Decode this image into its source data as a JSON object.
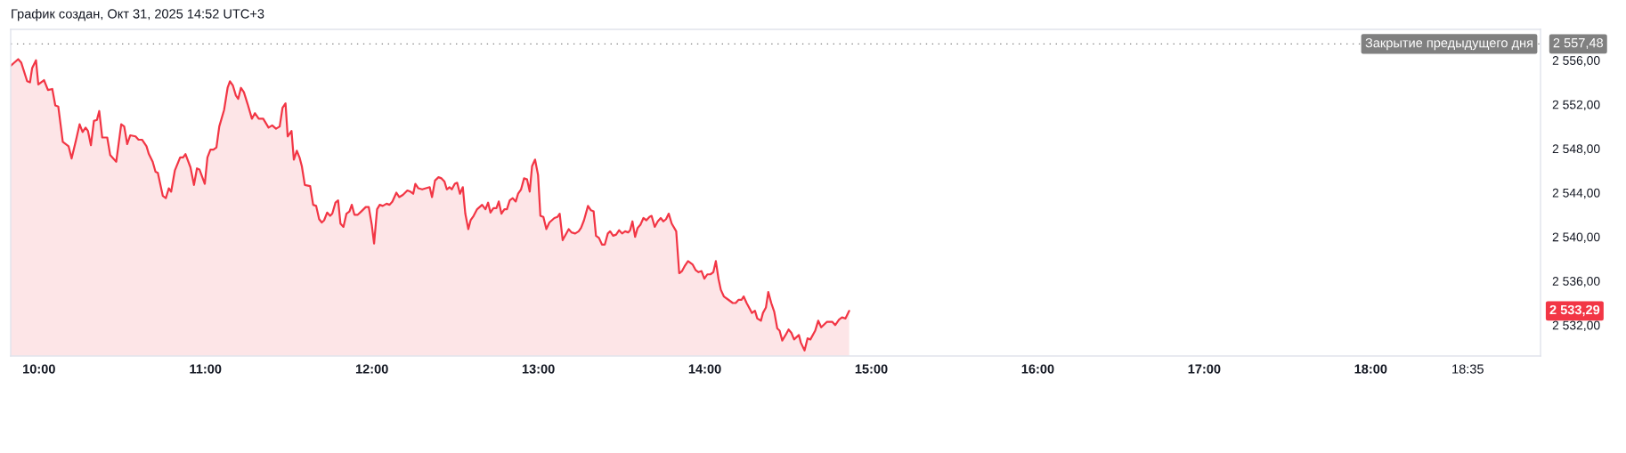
{
  "chart_data": {
    "type": "area",
    "title": "График создан, Окт 31, 2025 14:52 UTC+3",
    "x": [
      9.83,
      9.875,
      9.893,
      9.929,
      9.946,
      9.959,
      9.982,
      9.996,
      10.03,
      10.054,
      10.08,
      10.098,
      10.116,
      10.143,
      10.178,
      10.196,
      10.223,
      10.244,
      10.262,
      10.28,
      10.294,
      10.312,
      10.33,
      10.348,
      10.362,
      10.38,
      10.41,
      10.428,
      10.464,
      10.494,
      10.512,
      10.53,
      10.548,
      10.58,
      10.598,
      10.619,
      10.646,
      10.66,
      10.683,
      10.7,
      10.714,
      10.744,
      10.762,
      10.78,
      10.794,
      10.816,
      10.848,
      10.866,
      10.88,
      10.91,
      10.931,
      10.949,
      10.964,
      10.996,
      11.012,
      11.03,
      11.048,
      11.066,
      11.083,
      11.112,
      11.133,
      11.147,
      11.165,
      11.183,
      11.197,
      11.213,
      11.231,
      11.254,
      11.279,
      11.297,
      11.32,
      11.347,
      11.379,
      11.401,
      11.424,
      11.446,
      11.463,
      11.481,
      11.494,
      11.517,
      11.531,
      11.549,
      11.565,
      11.579,
      11.597,
      11.629,
      11.647,
      11.665,
      11.683,
      11.699,
      11.713,
      11.731,
      11.749,
      11.762,
      11.781,
      11.797,
      11.811,
      11.829,
      11.847,
      11.865,
      11.879,
      11.895,
      11.915,
      11.936,
      11.963,
      11.981,
      11.999,
      12.013,
      12.031,
      12.047,
      12.065,
      12.088,
      12.106,
      12.123,
      12.147,
      12.164,
      12.186,
      12.213,
      12.231,
      12.248,
      12.261,
      12.279,
      12.302,
      12.347,
      12.361,
      12.379,
      12.4,
      12.418,
      12.436,
      12.45,
      12.466,
      12.48,
      12.498,
      12.512,
      12.529,
      12.546,
      12.561,
      12.579,
      12.593,
      12.611,
      12.632,
      12.662,
      12.682,
      12.698,
      12.712,
      12.73,
      12.748,
      12.762,
      12.778,
      12.796,
      12.811,
      12.828,
      12.846,
      12.864,
      12.878,
      12.896,
      12.914,
      12.932,
      12.948,
      12.962,
      12.98,
      12.998,
      13.012,
      13.03,
      13.048,
      13.066,
      13.096,
      13.114,
      13.128,
      13.146,
      13.182,
      13.199,
      13.221,
      13.242,
      13.256,
      13.274,
      13.298,
      13.316,
      13.332,
      13.346,
      13.364,
      13.382,
      13.399,
      13.417,
      13.431,
      13.449,
      13.467,
      13.485,
      13.503,
      13.521,
      13.539,
      13.551,
      13.565,
      13.581,
      13.596,
      13.613,
      13.631,
      13.649,
      13.667,
      13.68,
      13.699,
      13.717,
      13.735,
      13.751,
      13.767,
      13.783,
      13.801,
      13.828,
      13.846,
      13.863,
      13.881,
      13.899,
      13.926,
      13.944,
      13.962,
      13.98,
      13.997,
      14.015,
      14.033,
      14.051,
      14.066,
      14.082,
      14.096,
      14.114,
      14.141,
      14.168,
      14.185,
      14.203,
      14.221,
      14.233,
      14.251,
      14.269,
      14.283,
      14.301,
      14.315,
      14.337,
      14.349,
      14.367,
      14.381,
      14.399,
      14.417,
      14.435,
      14.449,
      14.465,
      14.485,
      14.503,
      14.52,
      14.536,
      14.565,
      14.577,
      14.599,
      14.617,
      14.634,
      14.663,
      14.681,
      14.699,
      14.734,
      14.765,
      14.783,
      14.806,
      14.824,
      14.845,
      14.867
    ],
    "series": [
      {
        "color": "#f23645",
        "values": [
          2555.5,
          2556.1,
          2555.8,
          2554.1,
          2554.0,
          2555.3,
          2556.0,
          2553.8,
          2554.2,
          2553.3,
          2553.4,
          2551.9,
          2551.8,
          2548.6,
          2548.2,
          2547.1,
          2548.8,
          2550.2,
          2549.5,
          2549.9,
          2549.6,
          2548.3,
          2550.5,
          2550.6,
          2551.4,
          2549.0,
          2549.0,
          2547.4,
          2546.8,
          2550.2,
          2550.0,
          2548.4,
          2549.2,
          2549.1,
          2548.8,
          2548.8,
          2548.2,
          2547.5,
          2546.8,
          2545.9,
          2545.8,
          2543.7,
          2543.5,
          2544.4,
          2544.1,
          2546.0,
          2547.2,
          2547.2,
          2547.5,
          2546.3,
          2544.7,
          2546.2,
          2546.1,
          2544.8,
          2547.2,
          2547.9,
          2547.9,
          2548.1,
          2550.0,
          2551.5,
          2553.5,
          2554.1,
          2553.7,
          2552.8,
          2552.5,
          2553.5,
          2553.1,
          2552.0,
          2550.7,
          2551.2,
          2550.7,
          2550.7,
          2549.9,
          2550.1,
          2549.8,
          2550.0,
          2551.7,
          2552.1,
          2549.1,
          2549.6,
          2547.0,
          2547.8,
          2547.2,
          2546.4,
          2544.7,
          2544.6,
          2542.9,
          2542.8,
          2541.6,
          2541.3,
          2541.5,
          2542.2,
          2541.9,
          2542.1,
          2543.1,
          2543.3,
          2541.2,
          2540.9,
          2542.1,
          2542.3,
          2542.9,
          2542.0,
          2542.0,
          2542.3,
          2542.7,
          2542.7,
          2541.1,
          2539.4,
          2542.5,
          2542.9,
          2542.8,
          2543.0,
          2542.9,
          2543.2,
          2544.0,
          2543.6,
          2543.8,
          2544.2,
          2544.1,
          2543.9,
          2544.8,
          2544.4,
          2544.3,
          2544.5,
          2543.6,
          2545.1,
          2545.4,
          2545.3,
          2545.0,
          2544.3,
          2544.5,
          2544.3,
          2544.8,
          2544.9,
          2543.9,
          2544.5,
          2542.1,
          2540.7,
          2541.5,
          2541.9,
          2542.5,
          2542.9,
          2542.5,
          2543.1,
          2542.2,
          2542.6,
          2542.6,
          2543.2,
          2542.1,
          2542.5,
          2542.5,
          2543.3,
          2543.5,
          2543.2,
          2543.9,
          2544.3,
          2545.3,
          2545.2,
          2544.1,
          2546.4,
          2547.0,
          2545.6,
          2541.9,
          2541.8,
          2540.7,
          2541.3,
          2541.7,
          2541.8,
          2542.1,
          2539.7,
          2540.7,
          2540.4,
          2540.3,
          2540.5,
          2540.8,
          2541.5,
          2542.8,
          2542.4,
          2542.3,
          2540.1,
          2539.9,
          2539.3,
          2539.3,
          2540.3,
          2540.5,
          2540.1,
          2540.2,
          2540.6,
          2540.3,
          2540.5,
          2540.4,
          2540.6,
          2541.4,
          2540.0,
          2540.8,
          2541.1,
          2541.7,
          2541.5,
          2541.8,
          2541.9,
          2540.9,
          2541.4,
          2541.7,
          2541.4,
          2541.6,
          2542.1,
          2541.2,
          2540.5,
          2536.7,
          2536.9,
          2537.4,
          2537.8,
          2537.5,
          2537.0,
          2536.8,
          2536.9,
          2536.2,
          2536.6,
          2536.6,
          2536.8,
          2537.8,
          2536.2,
          2535.2,
          2534.6,
          2534.3,
          2534.0,
          2534.0,
          2534.3,
          2534.3,
          2534.6,
          2534.0,
          2533.5,
          2533.1,
          2533.3,
          2532.6,
          2532.4,
          2533.1,
          2533.6,
          2535.0,
          2534.0,
          2533.2,
          2531.7,
          2531.5,
          2530.6,
          2531.1,
          2531.6,
          2531.3,
          2530.7,
          2531.1,
          2530.4,
          2529.7,
          2530.8,
          2530.7,
          2531.5,
          2532.4,
          2531.8,
          2532.3,
          2532.3,
          2532.0,
          2532.5,
          2532.7,
          2532.6,
          2533.29
        ]
      }
    ],
    "xlim": [
      9.83,
      19.02
    ],
    "ylim": [
      2529.2,
      2558.8
    ],
    "xticks": [
      {
        "value": 10,
        "label": "10:00"
      },
      {
        "value": 11,
        "label": "11:00"
      },
      {
        "value": 12,
        "label": "12:00"
      },
      {
        "value": 13,
        "label": "13:00"
      },
      {
        "value": 14,
        "label": "14:00"
      },
      {
        "value": 15,
        "label": "15:00"
      },
      {
        "value": 16,
        "label": "16:00"
      },
      {
        "value": 17,
        "label": "17:00"
      },
      {
        "value": 18,
        "label": "18:00"
      },
      {
        "value": 18.583,
        "label": "18:35"
      }
    ],
    "yticks": [
      {
        "value": 2532,
        "label": "2 532,00"
      },
      {
        "value": 2536,
        "label": "2 536,00"
      },
      {
        "value": 2540,
        "label": "2 540,00"
      },
      {
        "value": 2544,
        "label": "2 544,00"
      },
      {
        "value": 2548,
        "label": "2 548,00"
      },
      {
        "value": 2552,
        "label": "2 552,00"
      },
      {
        "value": 2556,
        "label": "2 556,00"
      }
    ],
    "ref_lines": [
      {
        "axis": "y",
        "value": 2557.48,
        "label": "Закрытие предыдущего дня",
        "color": "#808080",
        "line_style": "dotted"
      }
    ],
    "annotations": [
      {
        "text": "2 557,48",
        "x": 19.02,
        "y": 2557.48
      },
      "2 533,29"
    ]
  }
}
